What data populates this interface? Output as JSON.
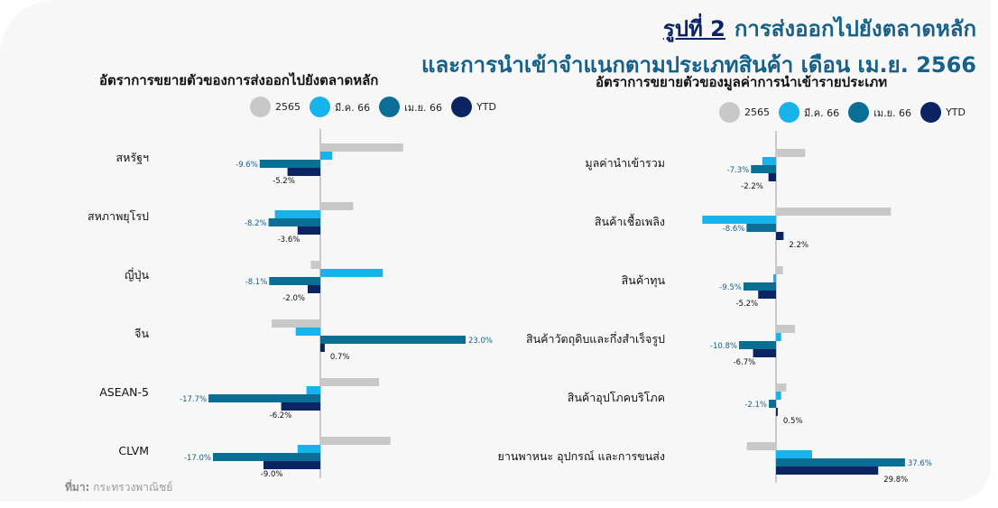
{
  "header": {
    "figure_label": "รูปที่ 2",
    "title_line1": "การส่งออกไปยังตลาดหลัก",
    "title_line2": "และการนำเข้าจำแนกตามประเภทสินค้า เดือน เม.ย. 2566"
  },
  "legend": [
    {
      "name": "2565",
      "color": "#c8c8c8"
    },
    {
      "name": "มี.ค. 66",
      "color": "#18b3ea"
    },
    {
      "name": "เม.ย. 66",
      "color": "#0b6f95"
    },
    {
      "name": "YTD",
      "color": "#0c2461"
    }
  ],
  "source": {
    "label": "ที่มา:",
    "text": "กระทรวงพาณิชย์"
  },
  "chart_data": [
    {
      "type": "bar",
      "orientation": "horizontal",
      "title": "อัตราการขยายตัวของการส่งออกไปยังตลาดหลัก",
      "categories": [
        "สหรัฐฯ",
        "สหภาพยุโรป",
        "ญี่ปุ่น",
        "จีน",
        "ASEAN-5",
        "CLVM"
      ],
      "series": [
        {
          "name": "2565",
          "values": [
            13.1,
            5.2,
            -1.5,
            -7.7,
            9.3,
            11.1
          ]
        },
        {
          "name": "มี.ค. 66",
          "values": [
            1.9,
            -7.2,
            9.9,
            -3.9,
            -2.2,
            -3.6
          ]
        },
        {
          "name": "เม.ย. 66",
          "values": [
            -9.6,
            -8.2,
            -8.1,
            23.0,
            -17.7,
            -17.0
          ]
        },
        {
          "name": "YTD",
          "values": [
            -5.2,
            -3.6,
            -2.0,
            0.7,
            -6.2,
            -9.0
          ]
        }
      ],
      "data_labels": {
        "เม.ย. 66": [
          "-9.6%",
          "-8.2%",
          "-8.1%",
          "23.0%",
          "-17.7%",
          "-17.0%"
        ],
        "YTD": [
          "-5.2%",
          "-3.6%",
          "-2.0%",
          "0.7%",
          "-6.2%",
          "-9.0%"
        ]
      }
    },
    {
      "type": "bar",
      "orientation": "horizontal",
      "title": "อัตราการขยายตัวของมูลค่าการนำเข้ารายประเภท",
      "categories": [
        "มูลค่านำเข้ารวม",
        "สินค้าเชื้อเพลิง",
        "สินค้าทุน",
        "สินค้าวัตถุดิบและกึ่งสำเร็จรูป",
        "สินค้าอุปโภคบริโภค",
        "ยานพาหนะ อุปกรณ์ และการขนส่ง"
      ],
      "series": [
        {
          "name": "2565",
          "values": [
            8.5,
            33.5,
            2.0,
            5.5,
            3.0,
            -8.5
          ]
        },
        {
          "name": "มี.ค. 66",
          "values": [
            -4.0,
            -21.5,
            -0.8,
            1.5,
            1.5,
            10.5
          ]
        },
        {
          "name": "เม.ย. 66",
          "values": [
            -7.3,
            -8.6,
            -9.5,
            -10.8,
            -2.1,
            37.6
          ]
        },
        {
          "name": "YTD",
          "values": [
            -2.2,
            2.2,
            -5.2,
            -6.7,
            0.5,
            29.8
          ]
        }
      ],
      "data_labels": {
        "เม.ย. 66": [
          "-7.3%",
          "-8.6%",
          "-9.5%",
          "-10.8%",
          "-2.1%",
          "37.6%"
        ],
        "YTD": [
          "-2.2%",
          "2.2%",
          "-5.2%",
          "-6.7%",
          "0.5%",
          "29.8%"
        ]
      }
    }
  ]
}
